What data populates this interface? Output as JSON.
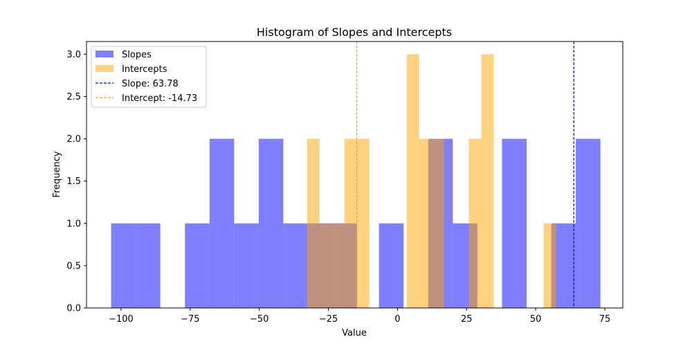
{
  "chart_data": {
    "type": "bar",
    "title": "Histogram of Slopes and Intercepts",
    "xlabel": "Value",
    "ylabel": "Frequency",
    "xlim": [
      -112.5,
      81.5
    ],
    "ylim": [
      0,
      3.15
    ],
    "x_ticks": [
      -100,
      -75,
      -50,
      -25,
      0,
      25,
      50,
      75
    ],
    "x_tick_labels": [
      "−100",
      "−75",
      "−50",
      "−25",
      "0",
      "25",
      "50",
      "75"
    ],
    "y_ticks": [
      0,
      0.5,
      1,
      1.5,
      2,
      2.5,
      3
    ],
    "y_tick_labels": [
      "0.0",
      "0.5",
      "1.0",
      "1.5",
      "2.0",
      "2.5",
      "3.0"
    ],
    "legend_position": "upper-left",
    "series": [
      {
        "name": "Slopes",
        "color": "#0000ff",
        "alpha": 0.5,
        "bins": [
          {
            "x0": -103.6,
            "x1": -94.7,
            "count": 1
          },
          {
            "x0": -94.7,
            "x1": -85.8,
            "count": 1
          },
          {
            "x0": -76.9,
            "x1": -68.0,
            "count": 1
          },
          {
            "x0": -68.0,
            "x1": -59.1,
            "count": 2
          },
          {
            "x0": -59.1,
            "x1": -50.2,
            "count": 1
          },
          {
            "x0": -50.2,
            "x1": -41.3,
            "count": 2
          },
          {
            "x0": -41.3,
            "x1": -32.4,
            "count": 1
          },
          {
            "x0": -32.4,
            "x1": -23.5,
            "count": 1
          },
          {
            "x0": -23.5,
            "x1": -14.6,
            "count": 1
          },
          {
            "x0": -6.7,
            "x1": 2.2,
            "count": 1
          },
          {
            "x0": 11.1,
            "x1": 20.0,
            "count": 2
          },
          {
            "x0": 20.0,
            "x1": 28.9,
            "count": 1
          },
          {
            "x0": 37.8,
            "x1": 46.7,
            "count": 2
          },
          {
            "x0": 55.6,
            "x1": 64.5,
            "count": 1
          },
          {
            "x0": 64.5,
            "x1": 73.4,
            "count": 2
          }
        ]
      },
      {
        "name": "Intercepts",
        "color": "#ffa500",
        "alpha": 0.5,
        "bins": [
          {
            "x0": -32.7,
            "x1": -28.2,
            "count": 2
          },
          {
            "x0": -28.2,
            "x1": -23.7,
            "count": 1
          },
          {
            "x0": -23.7,
            "x1": -19.2,
            "count": 1
          },
          {
            "x0": -19.2,
            "x1": -14.7,
            "count": 2
          },
          {
            "x0": -14.7,
            "x1": -10.2,
            "count": 2
          },
          {
            "x0": 3.3,
            "x1": 7.8,
            "count": 3
          },
          {
            "x0": 7.8,
            "x1": 12.3,
            "count": 2
          },
          {
            "x0": 12.3,
            "x1": 16.8,
            "count": 2
          },
          {
            "x0": 25.8,
            "x1": 30.3,
            "count": 2
          },
          {
            "x0": 30.3,
            "x1": 34.8,
            "count": 3
          },
          {
            "x0": 52.8,
            "x1": 57.3,
            "count": 1
          }
        ]
      }
    ],
    "reference_lines": [
      {
        "name": "Slope: 63.78",
        "x": 63.78,
        "color": "#0000ff",
        "style": "dashed"
      },
      {
        "name": "Intercept: -14.73",
        "x": -14.73,
        "color": "#ffa500",
        "style": "dashed"
      }
    ]
  }
}
